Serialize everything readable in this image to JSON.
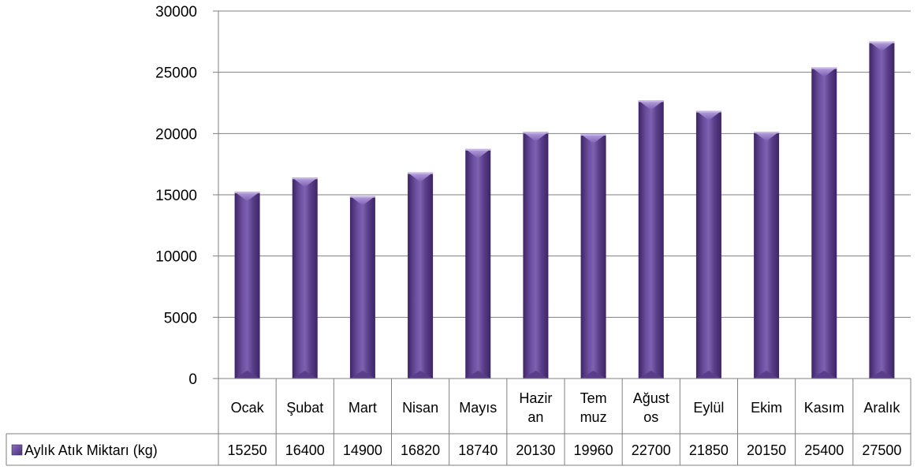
{
  "chart_data": {
    "type": "bar",
    "categories": [
      "Ocak",
      "Şubat",
      "Mart",
      "Nisan",
      "Mayıs",
      "Hazir an",
      "Tem muz",
      "Ağust os",
      "Eylül",
      "Ekim",
      "Kasım",
      "Aralık"
    ],
    "series": [
      {
        "name": "Aylık Atık Miktarı (kg)",
        "values": [
          15250,
          16400,
          14900,
          16820,
          18740,
          20130,
          19960,
          22700,
          21850,
          20150,
          25400,
          27500
        ],
        "value_labels": [
          "15250",
          "16400",
          "14900",
          "16820",
          "18740",
          "20130",
          "19960",
          "22700",
          "21850",
          "20150",
          "25400",
          "27500"
        ]
      }
    ],
    "yticks": [
      "0",
      "5000",
      "10000",
      "15000",
      "20000",
      "25000",
      "30000"
    ],
    "ylim": [
      0,
      30000
    ],
    "grid": true,
    "legend": "data-table",
    "colors": {
      "bar": "#6b4e9e",
      "bar_dark": "#3d2566",
      "bar_light": "#9a82c8",
      "grid": "#7f7f7f"
    }
  }
}
